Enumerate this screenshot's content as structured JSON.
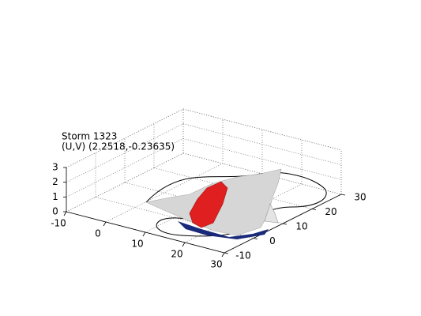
{
  "chart_data": {
    "type": "surface3d",
    "title": "Storm 1323",
    "subtitle": "(U,V) (2.2518,-0.23635)",
    "xlim": [
      -10,
      30
    ],
    "xticks": [
      -10,
      0,
      10,
      20,
      30
    ],
    "ylim": [
      -10,
      30
    ],
    "yticks": [
      -10,
      0,
      10,
      20,
      30
    ],
    "zlim": [
      0,
      3
    ],
    "zticks": [
      0,
      1,
      2,
      3
    ],
    "grid": true
  }
}
